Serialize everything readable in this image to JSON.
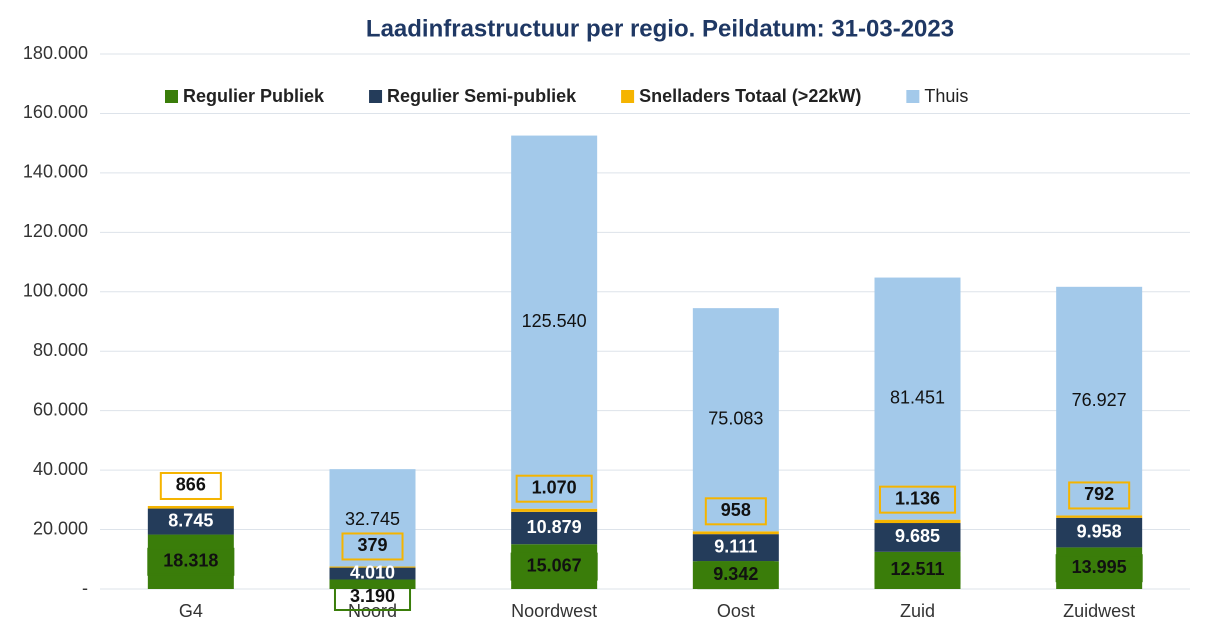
{
  "chart_data": {
    "type": "stacked_bar",
    "title": "Laadinfrastructuur per regio. Peildatum: 31-03-2023",
    "categories": [
      "G4",
      "Noord",
      "Noordwest",
      "Oost",
      "Zuid",
      "Zuidwest"
    ],
    "series": [
      {
        "name": "Regulier Publiek",
        "color": "#3a7d0a",
        "values": [
          18318,
          3190,
          15067,
          9342,
          12511,
          13995
        ],
        "value_labels": [
          "18.318",
          "3.190",
          "15.067",
          "9.342",
          "12.511",
          "13.995"
        ]
      },
      {
        "name": "Regulier Semi-publiek",
        "color": "#243c5a",
        "values": [
          8745,
          4010,
          10879,
          9111,
          9685,
          9958
        ],
        "value_labels": [
          "8.745",
          "4.010",
          "10.879",
          "9.111",
          "9.685",
          "9.958"
        ]
      },
      {
        "name": "Snelladers Totaal (>22kW)",
        "color": "#f5b400",
        "values": [
          866,
          379,
          1070,
          958,
          1136,
          792
        ],
        "value_labels": [
          "866",
          "379",
          "1.070",
          "958",
          "1.136",
          "792"
        ]
      },
      {
        "name": "Thuis",
        "color": "#a3c9ea",
        "values": [
          null,
          32745,
          125540,
          75083,
          81451,
          76927
        ],
        "value_labels": [
          null,
          "32.745",
          "125.540",
          "75.083",
          "81.451",
          "76.927"
        ]
      }
    ],
    "ylim": [
      0,
      180000
    ],
    "yticks": [
      {
        "value": 0,
        "label": "-"
      },
      {
        "value": 20000,
        "label": "20.000"
      },
      {
        "value": 40000,
        "label": "40.000"
      },
      {
        "value": 60000,
        "label": "60.000"
      },
      {
        "value": 80000,
        "label": "80.000"
      },
      {
        "value": 100000,
        "label": "100.000"
      },
      {
        "value": 120000,
        "label": "120.000"
      },
      {
        "value": 140000,
        "label": "140.000"
      },
      {
        "value": 160000,
        "label": "160.000"
      },
      {
        "value": 180000,
        "label": "180.000"
      }
    ],
    "grid": true,
    "legend": "top"
  }
}
